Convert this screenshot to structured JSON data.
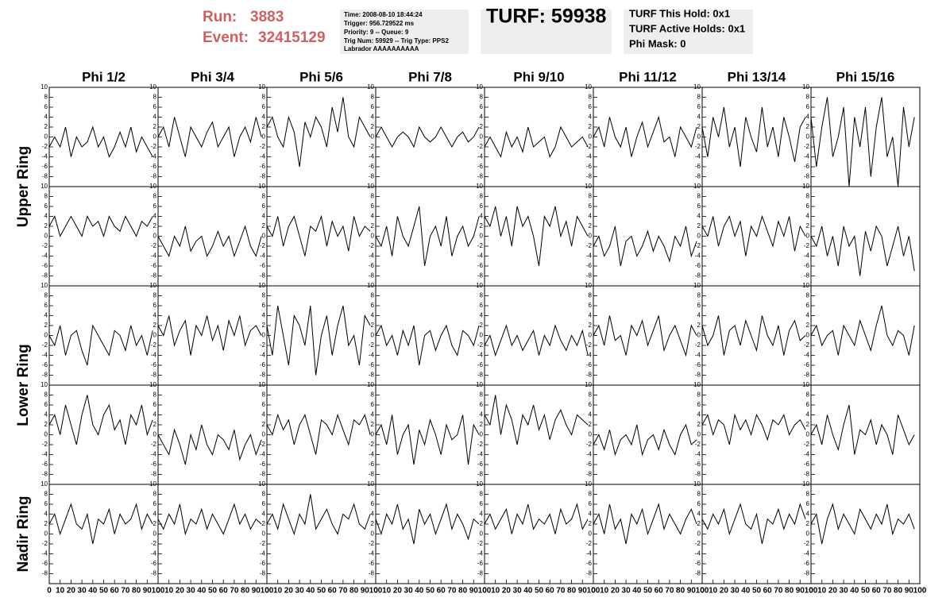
{
  "header": {
    "run_label": "Run:",
    "run": "3883",
    "event_label": "Event:",
    "event": "32415129",
    "info": [
      "Time: 2008-08-10 18:44:24",
      "Trigger: 956.729522 ms",
      "Priority: 9 -- Queue: 9",
      "Trig Num: 59929 -- Trig Type: PPS2",
      "Labrador AAAAAAAAAA"
    ],
    "turf": "TURF: 59938",
    "turf_info": [
      "TURF This Hold: 0x1",
      "TURF Active Holds: 0x1",
      "Phi Mask: 0"
    ]
  },
  "chart_data": {
    "type": "line",
    "columns": [
      "Phi 1/2",
      "Phi 3/4",
      "Phi 5/6",
      "Phi 7/8",
      "Phi 9/10",
      "Phi 11/12",
      "Phi 13/14",
      "Phi 15/16"
    ],
    "rings": [
      "Upper Ring",
      "Lower Ring",
      "Nadir Ring"
    ],
    "x": [
      0,
      5,
      10,
      15,
      20,
      25,
      30,
      35,
      40,
      45,
      50,
      55,
      60,
      65,
      70,
      75,
      80,
      85,
      90,
      95
    ],
    "xlim": [
      0,
      100
    ],
    "ylim": [
      -10,
      10
    ],
    "yticks": [
      -8,
      -6,
      -4,
      -2,
      0,
      2,
      4,
      6,
      8,
      10
    ],
    "xticks": [
      0,
      10,
      20,
      30,
      40,
      50,
      60,
      70,
      80,
      90,
      100
    ],
    "color": "#000000",
    "panels": [
      {
        "values": [
          -2,
          0,
          -2,
          2,
          -4,
          0,
          -2,
          -1,
          2,
          -2,
          0,
          -4,
          -2,
          1,
          -2,
          2,
          -3,
          0,
          -2,
          -4
        ]
      },
      {
        "values": [
          0,
          2,
          -2,
          4,
          0,
          -4,
          2,
          0,
          -2,
          1,
          3,
          -2,
          0,
          2,
          -4,
          0,
          2,
          -1,
          4,
          0
        ]
      },
      {
        "values": [
          2,
          4,
          0,
          -2,
          4,
          1,
          -6,
          3,
          0,
          4,
          2,
          -2,
          6,
          1,
          8,
          0,
          -2,
          4,
          2,
          0
        ]
      },
      {
        "values": [
          0,
          2,
          0,
          -2,
          0,
          1,
          0,
          -2,
          2,
          0,
          -1,
          0,
          2,
          0,
          -2,
          0,
          1,
          -1,
          0,
          2
        ]
      },
      {
        "values": [
          -2,
          0,
          -2,
          -4,
          1,
          -2,
          0,
          -3,
          2,
          -2,
          -1,
          0,
          -4,
          -2,
          2,
          0,
          -2,
          -1,
          0,
          -2
        ]
      },
      {
        "values": [
          0,
          2,
          -2,
          4,
          0,
          -2,
          2,
          -4,
          0,
          3,
          -2,
          1,
          4,
          -1,
          0,
          -4,
          2,
          0,
          -2,
          2
        ]
      },
      {
        "values": [
          2,
          -4,
          4,
          0,
          6,
          -2,
          2,
          -6,
          4,
          0,
          -3,
          6,
          -2,
          2,
          -4,
          4,
          0,
          -5,
          2,
          4
        ]
      },
      {
        "values": [
          4,
          -6,
          2,
          8,
          -4,
          0,
          6,
          -10,
          4,
          -2,
          6,
          -8,
          2,
          8,
          -4,
          0,
          -10,
          6,
          -2,
          4
        ]
      },
      {
        "values": [
          2,
          4,
          0,
          2,
          4,
          2,
          0,
          4,
          2,
          3,
          0,
          4,
          2,
          1,
          4,
          2,
          0,
          3,
          2,
          4
        ]
      },
      {
        "values": [
          0,
          -2,
          -4,
          0,
          -2,
          2,
          -3,
          -1,
          0,
          -4,
          -2,
          1,
          -2,
          0,
          -4,
          -1,
          2,
          -2,
          -4,
          0
        ]
      },
      {
        "values": [
          2,
          0,
          4,
          -2,
          2,
          4,
          0,
          -4,
          2,
          1,
          4,
          -2,
          3,
          0,
          2,
          -3,
          4,
          0,
          2,
          1
        ]
      },
      {
        "values": [
          0,
          -2,
          2,
          -4,
          4,
          0,
          -2,
          2,
          6,
          -6,
          0,
          2,
          -2,
          4,
          -4,
          0,
          2,
          -2,
          0,
          4
        ]
      },
      {
        "values": [
          4,
          2,
          6,
          0,
          4,
          -2,
          6,
          2,
          4,
          0,
          -6,
          4,
          2,
          6,
          0,
          3,
          -2,
          4,
          2,
          0
        ]
      },
      {
        "values": [
          -2,
          0,
          -4,
          -2,
          2,
          -6,
          -1,
          0,
          -4,
          -2,
          1,
          -3,
          0,
          -2,
          -5,
          0,
          -2,
          2,
          -4,
          -1
        ]
      },
      {
        "values": [
          2,
          0,
          4,
          -2,
          2,
          4,
          0,
          3,
          -4,
          2,
          0,
          4,
          1,
          -2,
          3,
          0,
          4,
          -3,
          2,
          0
        ]
      },
      {
        "values": [
          0,
          -2,
          2,
          -4,
          0,
          -6,
          2,
          -2,
          0,
          -8,
          1,
          -3,
          2,
          0,
          -6,
          -2,
          2,
          -4,
          0,
          -7
        ]
      },
      {
        "values": [
          0,
          -2,
          2,
          -4,
          0,
          1,
          -3,
          -6,
          2,
          0,
          -2,
          -4,
          1,
          0,
          -3,
          2,
          -2,
          0,
          -4,
          1
        ]
      },
      {
        "values": [
          2,
          0,
          4,
          -2,
          1,
          3,
          -4,
          2,
          0,
          4,
          -1,
          2,
          -3,
          3,
          0,
          4,
          -2,
          1,
          2,
          0
        ]
      },
      {
        "values": [
          2,
          -4,
          6,
          0,
          -6,
          4,
          2,
          -2,
          6,
          -8,
          0,
          4,
          -4,
          2,
          6,
          -2,
          0,
          -6,
          4,
          2
        ]
      },
      {
        "values": [
          0,
          2,
          -2,
          0,
          -4,
          1,
          -2,
          2,
          -6,
          0,
          1,
          -3,
          0,
          2,
          -2,
          -4,
          1,
          0,
          -2,
          2
        ]
      },
      {
        "values": [
          -2,
          0,
          -4,
          -1,
          2,
          -2,
          0,
          -3,
          -1,
          1,
          -4,
          0,
          -2,
          2,
          -1,
          -3,
          0,
          -2,
          1,
          -4
        ]
      },
      {
        "values": [
          0,
          2,
          -2,
          4,
          -1,
          0,
          -4,
          2,
          0,
          3,
          -2,
          1,
          4,
          -3,
          0,
          2,
          -1,
          -4,
          2,
          0
        ]
      },
      {
        "values": [
          2,
          -2,
          0,
          4,
          -4,
          1,
          2,
          -2,
          3,
          0,
          -3,
          4,
          0,
          -2,
          2,
          -4,
          1,
          3,
          -1,
          0
        ]
      },
      {
        "values": [
          0,
          2,
          -2,
          0,
          1,
          -4,
          2,
          0,
          -2,
          3,
          0,
          -3,
          2,
          6,
          0,
          -2,
          1,
          0,
          -4,
          2
        ]
      },
      {
        "values": [
          2,
          4,
          0,
          6,
          2,
          -2,
          4,
          8,
          2,
          0,
          4,
          6,
          1,
          3,
          -2,
          4,
          2,
          6,
          0,
          3
        ]
      },
      {
        "values": [
          0,
          -2,
          -4,
          1,
          -2,
          -6,
          0,
          -3,
          2,
          -2,
          -4,
          0,
          -1,
          -3,
          1,
          -5,
          -2,
          0,
          -4,
          -1
        ]
      },
      {
        "values": [
          2,
          0,
          4,
          1,
          3,
          -2,
          2,
          4,
          0,
          -4,
          3,
          2,
          0,
          4,
          1,
          -2,
          3,
          2,
          4,
          0
        ]
      },
      {
        "values": [
          0,
          2,
          -2,
          4,
          -4,
          0,
          2,
          -6,
          1,
          -2,
          3,
          0,
          -4,
          2,
          -1,
          0,
          4,
          -6,
          2,
          0
        ]
      },
      {
        "values": [
          4,
          2,
          8,
          0,
          6,
          3,
          -2,
          4,
          2,
          6,
          1,
          4,
          -1,
          3,
          5,
          2,
          0,
          4,
          3,
          2
        ]
      },
      {
        "values": [
          -2,
          0,
          -3,
          1,
          -4,
          -1,
          0,
          -2,
          2,
          -4,
          -1,
          0,
          -3,
          1,
          -2,
          -4,
          0,
          2,
          -2,
          -1
        ]
      },
      {
        "values": [
          2,
          4,
          0,
          3,
          2,
          -2,
          4,
          1,
          3,
          0,
          4,
          2,
          -1,
          3,
          2,
          4,
          0,
          2,
          3,
          1
        ]
      },
      {
        "values": [
          0,
          2,
          -2,
          4,
          0,
          -3,
          2,
          6,
          -4,
          1,
          0,
          3,
          -2,
          2,
          0,
          -4,
          4,
          1,
          -2,
          0
        ]
      },
      {
        "values": [
          2,
          4,
          0,
          3,
          6,
          2,
          1,
          4,
          -2,
          3,
          2,
          5,
          0,
          4,
          2,
          3,
          6,
          1,
          4,
          2
        ]
      },
      {
        "values": [
          3,
          1,
          4,
          2,
          6,
          0,
          3,
          2,
          5,
          1,
          4,
          2,
          0,
          3,
          6,
          2,
          4,
          1,
          3,
          2
        ]
      },
      {
        "values": [
          2,
          4,
          1,
          6,
          3,
          0,
          4,
          2,
          8,
          1,
          3,
          5,
          2,
          0,
          4,
          3,
          6,
          2,
          1,
          4
        ]
      },
      {
        "values": [
          3,
          0,
          4,
          2,
          6,
          1,
          3,
          -2,
          5,
          2,
          4,
          0,
          3,
          6,
          1,
          4,
          2,
          -1,
          3,
          2
        ]
      },
      {
        "values": [
          2,
          4,
          1,
          3,
          5,
          0,
          4,
          2,
          6,
          1,
          3,
          2,
          4,
          0,
          5,
          2,
          3,
          6,
          1,
          3
        ]
      },
      {
        "values": [
          2,
          4,
          0,
          6,
          1,
          3,
          -2,
          4,
          2,
          5,
          0,
          3,
          6,
          1,
          4,
          2,
          0,
          3,
          5,
          2
        ]
      },
      {
        "values": [
          3,
          1,
          4,
          2,
          5,
          0,
          3,
          6,
          2,
          1,
          4,
          -2,
          3,
          2,
          5,
          1,
          4,
          2,
          6,
          3
        ]
      },
      {
        "values": [
          2,
          4,
          -2,
          3,
          6,
          1,
          4,
          2,
          0,
          5,
          3,
          1,
          4,
          2,
          6,
          0,
          3,
          2,
          4,
          1
        ]
      }
    ]
  }
}
